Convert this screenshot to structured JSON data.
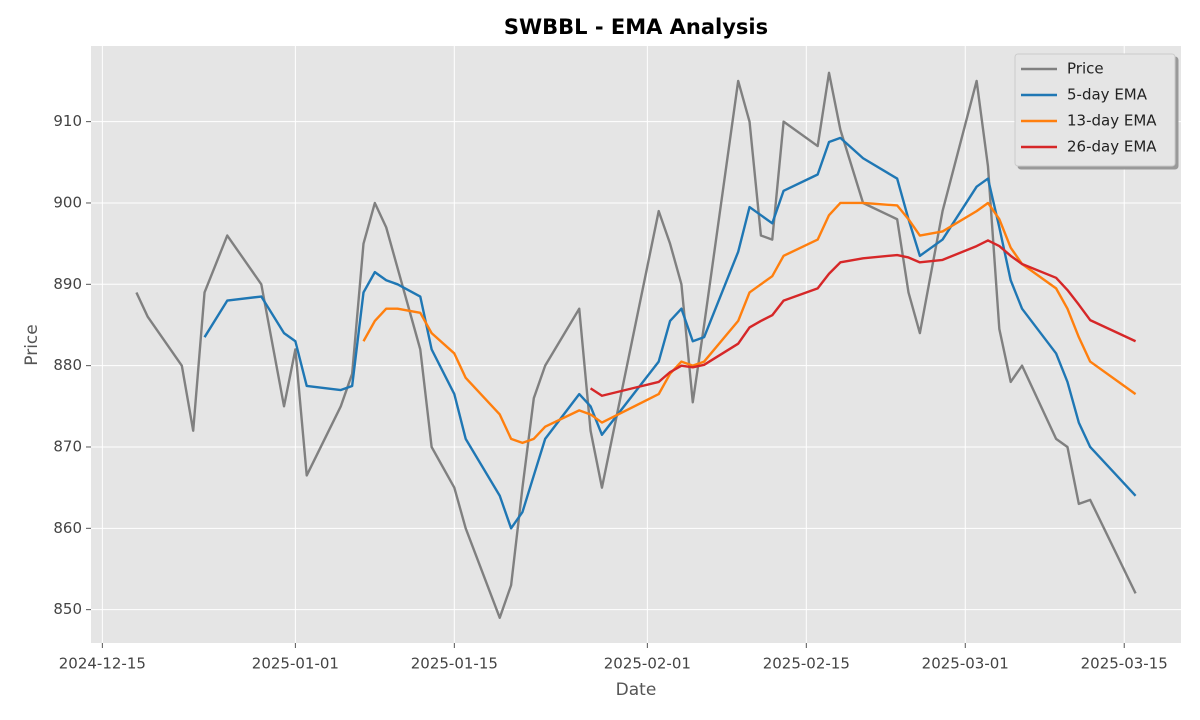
{
  "chart_data": {
    "type": "line",
    "title": "SWBBL - EMA Analysis",
    "x_label": "Date",
    "y_label": "Price",
    "x": [
      "2024-12-18",
      "2024-12-19",
      "2024-12-22",
      "2024-12-23",
      "2024-12-24",
      "2024-12-26",
      "2024-12-29",
      "2024-12-31",
      "2025-01-01",
      "2025-01-02",
      "2025-01-05",
      "2025-01-06",
      "2025-01-07",
      "2025-01-08",
      "2025-01-09",
      "2025-01-10",
      "2025-01-12",
      "2025-01-13",
      "2025-01-15",
      "2025-01-16",
      "2025-01-19",
      "2025-01-20",
      "2025-01-21",
      "2025-01-22",
      "2025-01-23",
      "2025-01-26",
      "2025-01-27",
      "2025-01-28",
      "2025-02-02",
      "2025-02-03",
      "2025-02-04",
      "2025-02-05",
      "2025-02-06",
      "2025-02-09",
      "2025-02-10",
      "2025-02-11",
      "2025-02-12",
      "2025-02-13",
      "2025-02-16",
      "2025-02-17",
      "2025-02-18",
      "2025-02-20",
      "2025-02-23",
      "2025-02-24",
      "2025-02-25",
      "2025-02-27",
      "2025-03-02",
      "2025-03-03",
      "2025-03-04",
      "2025-03-05",
      "2025-03-06",
      "2025-03-09",
      "2025-03-10",
      "2025-03-11",
      "2025-03-12",
      "2025-03-16"
    ],
    "series": [
      {
        "name": "Price",
        "color": "#808080",
        "values": [
          889,
          886,
          880,
          872,
          889,
          896,
          890,
          875,
          882,
          866.5,
          875,
          879,
          895,
          900,
          897,
          892,
          882,
          870,
          865,
          860,
          849,
          853,
          865,
          876,
          880,
          887,
          872,
          865,
          899,
          895,
          890,
          875.5,
          885,
          915,
          910,
          896,
          895.5,
          910,
          907,
          916,
          909,
          900,
          898,
          889,
          884,
          899,
          915,
          904.5,
          884.5,
          878,
          880,
          871,
          870,
          863,
          863.5,
          852
        ]
      },
      {
        "name": "5-day EMA",
        "color": "#1f77b4",
        "values": [
          null,
          null,
          null,
          null,
          883.5,
          888,
          888.5,
          884,
          883,
          877.5,
          877,
          877.5,
          889,
          891.5,
          890.5,
          890,
          888.5,
          882,
          876.5,
          871,
          864,
          860,
          862,
          866.5,
          871,
          876.5,
          875,
          871.5,
          880.5,
          885.5,
          887,
          883,
          883.5,
          894,
          899.5,
          898.5,
          897.5,
          901.5,
          903.5,
          907.5,
          908,
          905.5,
          903,
          898,
          893.5,
          895.5,
          902,
          903,
          897,
          890.5,
          887,
          881.5,
          878,
          873,
          870,
          864
        ]
      },
      {
        "name": "13-day EMA",
        "color": "#ff7f0e",
        "values": [
          null,
          null,
          null,
          null,
          null,
          null,
          null,
          null,
          null,
          null,
          null,
          null,
          883,
          885.5,
          887,
          887,
          886.5,
          884,
          881.5,
          878.5,
          874,
          871,
          870.5,
          871,
          872.5,
          874.5,
          874,
          873,
          876.5,
          879,
          880.5,
          880,
          880.5,
          885.5,
          889,
          890,
          891,
          893.5,
          895.5,
          898.5,
          900,
          900,
          899.7,
          898,
          896,
          896.5,
          899,
          900,
          898,
          894.5,
          892.5,
          889.5,
          887,
          883.5,
          880.5,
          876.5
        ]
      },
      {
        "name": "26-day EMA",
        "color": "#d62728",
        "values": [
          null,
          null,
          null,
          null,
          null,
          null,
          null,
          null,
          null,
          null,
          null,
          null,
          null,
          null,
          null,
          null,
          null,
          null,
          null,
          null,
          null,
          null,
          null,
          null,
          null,
          null,
          877.2,
          876.3,
          878,
          879.2,
          880,
          879.8,
          880.1,
          882.7,
          884.7,
          885.5,
          886.2,
          888,
          889.5,
          891.3,
          892.7,
          893.2,
          893.6,
          893.3,
          892.7,
          893,
          894.7,
          895.4,
          894.7,
          893.5,
          892.5,
          890.8,
          889.3,
          887.5,
          885.6,
          883
        ]
      }
    ],
    "xlim": [
      "2024-12-14",
      "2025-03-20"
    ],
    "xticks": [
      "2024-12-15",
      "2025-01-01",
      "2025-01-15",
      "2025-02-01",
      "2025-02-15",
      "2025-03-01",
      "2025-03-15"
    ],
    "ylim": [
      845.9,
      919.3
    ],
    "yticks": [
      850,
      860,
      870,
      880,
      890,
      900,
      910
    ],
    "grid": true,
    "legend": "upper right"
  }
}
